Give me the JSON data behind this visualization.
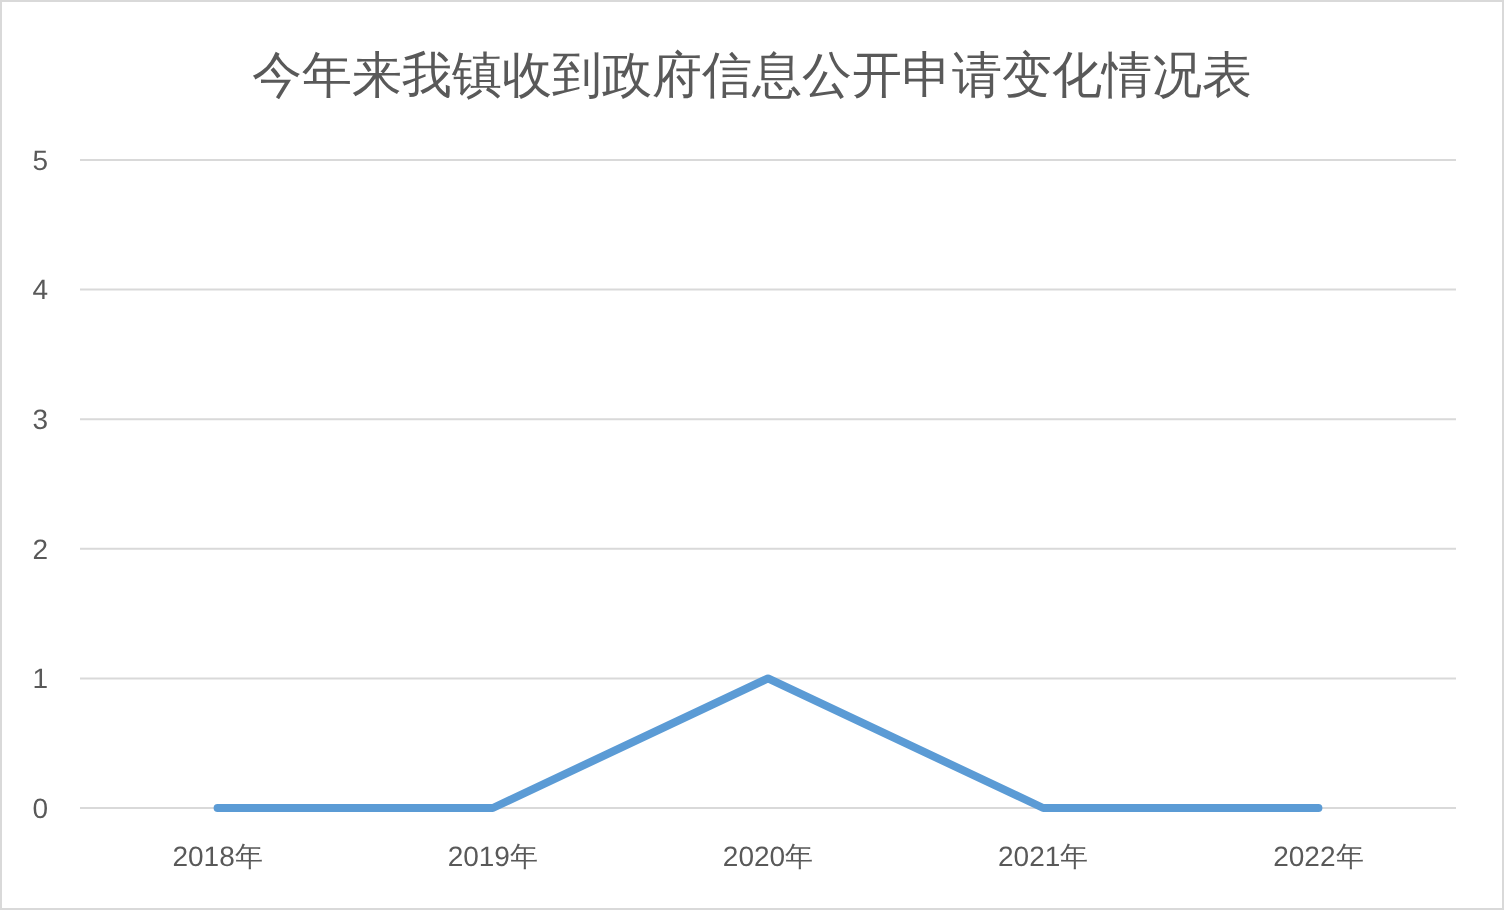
{
  "chart_data": {
    "type": "line",
    "title": "今年来我镇收到政府信息公开申请变化情况表",
    "categories": [
      "2018年",
      "2019年",
      "2020年",
      "2021年",
      "2022年"
    ],
    "series": [
      {
        "color": "#5b9bd5",
        "values": [
          0,
          0,
          1,
          0,
          0
        ]
      }
    ],
    "ylim": [
      0,
      5
    ],
    "yticks": [
      0,
      1,
      2,
      3,
      4,
      5
    ],
    "grid": "y",
    "marker": "none",
    "line_style": "solid"
  }
}
